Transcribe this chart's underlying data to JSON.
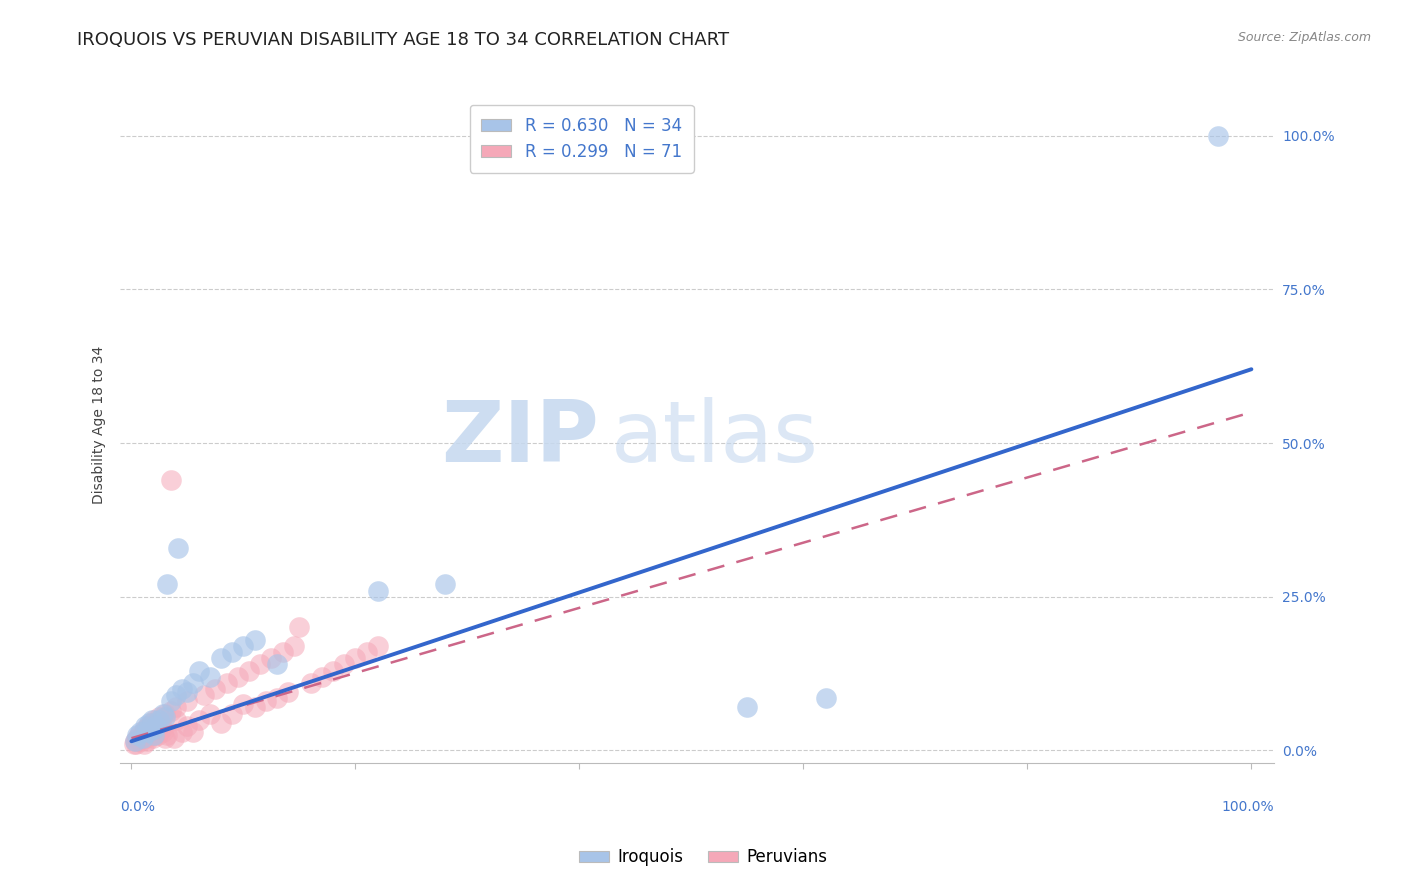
{
  "title": "IROQUOIS VS PERUVIAN DISABILITY AGE 18 TO 34 CORRELATION CHART",
  "source": "Source: ZipAtlas.com",
  "ylabel": "Disability Age 18 to 34",
  "ytick_values": [
    0,
    25,
    50,
    75,
    100
  ],
  "xtick_values": [
    0,
    20,
    40,
    60,
    80,
    100
  ],
  "xlim": [
    -1,
    102
  ],
  "ylim": [
    -2,
    108
  ],
  "iroquois_color": "#a8c4e8",
  "peruvian_color": "#f5a8b8",
  "iroquois_line_color": "#3366cc",
  "peruvian_line_color": "#cc6688",
  "watermark_zip": "ZIP",
  "watermark_atlas": "atlas",
  "background_color": "#ffffff",
  "grid_color": "#cccccc",
  "iroquois_x": [
    0.3,
    0.5,
    0.8,
    1.0,
    1.2,
    1.4,
    1.5,
    1.6,
    1.8,
    2.0,
    2.2,
    2.5,
    2.8,
    3.0,
    3.5,
    4.0,
    4.5,
    5.0,
    5.5,
    6.0,
    7.0,
    8.0,
    9.0,
    10.0,
    11.0,
    13.0,
    22.0,
    28.0,
    55.0,
    62.0,
    97.0,
    2.0,
    3.2,
    4.2
  ],
  "iroquois_y": [
    1.5,
    2.5,
    3.0,
    2.0,
    4.0,
    3.5,
    3.0,
    4.5,
    5.0,
    3.5,
    4.0,
    5.0,
    6.0,
    5.5,
    8.0,
    9.0,
    10.0,
    9.5,
    11.0,
    13.0,
    12.0,
    15.0,
    16.0,
    17.0,
    18.0,
    14.0,
    26.0,
    27.0,
    7.0,
    8.5,
    100.0,
    2.5,
    27.0,
    33.0
  ],
  "peruvian_x": [
    0.2,
    0.3,
    0.4,
    0.5,
    0.6,
    0.7,
    0.8,
    0.9,
    1.0,
    1.1,
    1.2,
    1.3,
    1.4,
    1.5,
    1.6,
    1.7,
    1.8,
    1.9,
    2.0,
    2.1,
    2.2,
    2.3,
    2.4,
    2.5,
    2.6,
    2.7,
    2.8,
    3.0,
    3.2,
    3.5,
    3.8,
    4.0,
    4.5,
    5.0,
    5.5,
    6.0,
    7.0,
    8.0,
    9.0,
    10.0,
    11.0,
    12.0,
    13.0,
    14.0,
    15.0,
    16.0,
    17.0,
    18.0,
    19.0,
    20.0,
    21.0,
    22.0,
    1.0,
    1.2,
    1.5,
    1.8,
    2.0,
    2.5,
    3.0,
    3.5,
    4.0,
    5.0,
    6.5,
    7.5,
    8.5,
    9.5,
    10.5,
    11.5,
    12.5,
    13.5,
    14.5
  ],
  "peruvian_y": [
    1.0,
    1.5,
    1.0,
    2.0,
    1.5,
    2.5,
    2.0,
    1.5,
    2.5,
    1.0,
    3.0,
    2.0,
    1.5,
    3.5,
    2.5,
    4.0,
    3.0,
    2.0,
    2.5,
    3.5,
    4.0,
    3.0,
    2.5,
    3.0,
    4.5,
    3.5,
    3.0,
    2.0,
    2.5,
    44.0,
    2.0,
    5.0,
    3.0,
    4.0,
    3.0,
    5.0,
    6.0,
    4.5,
    6.0,
    7.5,
    7.0,
    8.0,
    8.5,
    9.5,
    20.0,
    11.0,
    12.0,
    13.0,
    14.0,
    15.0,
    16.0,
    17.0,
    3.0,
    3.5,
    4.0,
    4.5,
    5.0,
    5.5,
    6.0,
    6.5,
    7.0,
    8.0,
    9.0,
    10.0,
    11.0,
    12.0,
    13.0,
    14.0,
    15.0,
    16.0,
    17.0
  ],
  "irq_line_x0": 0,
  "irq_line_y0": 1.5,
  "irq_line_x1": 100,
  "irq_line_y1": 62,
  "per_line_x0": 0,
  "per_line_y0": 2.0,
  "per_line_x1": 100,
  "per_line_y1": 55,
  "title_fontsize": 13,
  "axis_label_fontsize": 10,
  "tick_fontsize": 10,
  "legend_fontsize": 12
}
